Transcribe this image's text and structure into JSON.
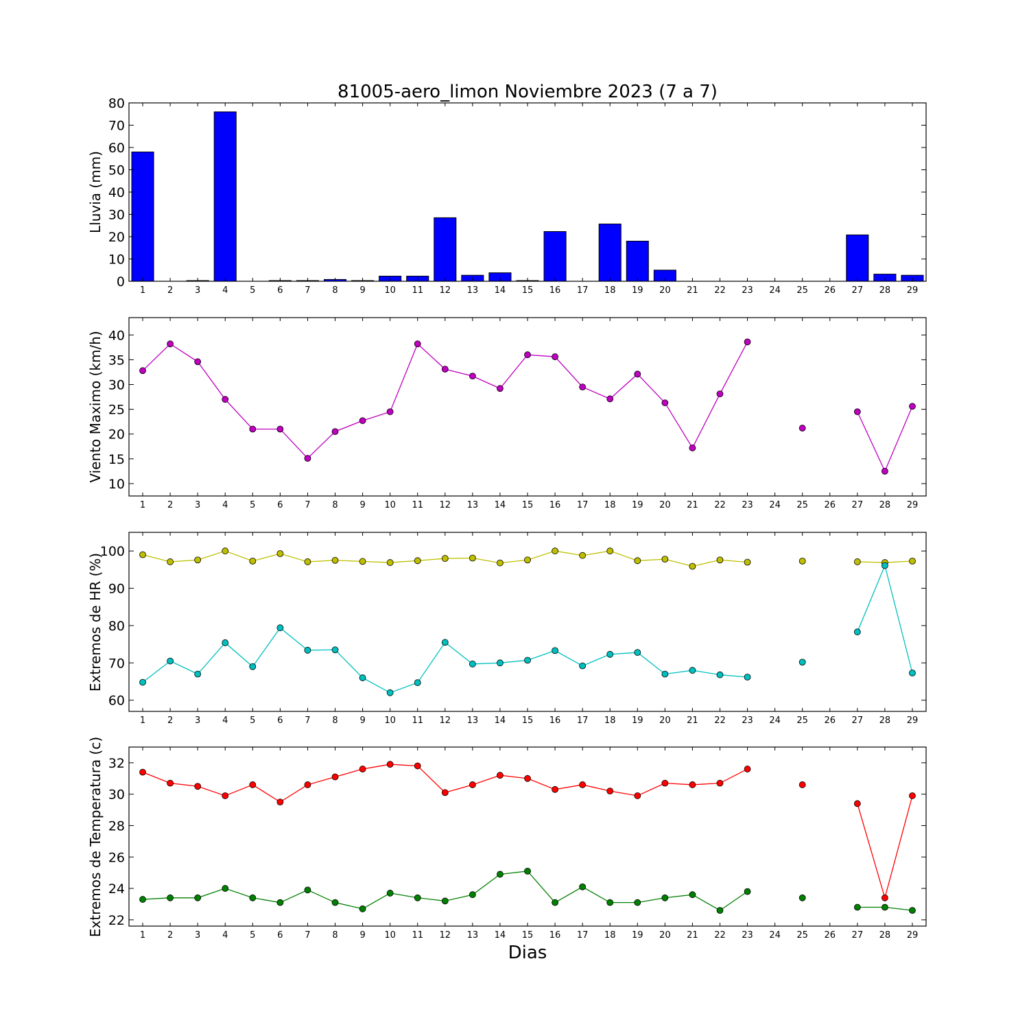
{
  "chart_data": [
    {
      "type": "bar",
      "title": "81005-aero_limon Noviembre 2023  (7 a 7)",
      "ylabel": "Lluvia (mm)",
      "ylim": [
        0,
        80
      ],
      "yticks": [
        0,
        10,
        20,
        30,
        40,
        50,
        60,
        70,
        80
      ],
      "categories": [
        "1",
        "2",
        "3",
        "4",
        "5",
        "6",
        "7",
        "8",
        "9",
        "10",
        "11",
        "12",
        "13",
        "14",
        "15",
        "16",
        "17",
        "18",
        "19",
        "20",
        "21",
        "22",
        "23",
        "24",
        "25",
        "26",
        "27",
        "28",
        "29"
      ],
      "values": [
        58,
        0,
        0.3,
        76,
        0,
        0.3,
        0.3,
        0.8,
        0.3,
        2.3,
        2.3,
        28.5,
        2.7,
        3.8,
        0.3,
        22.3,
        0,
        25.7,
        18,
        5,
        0,
        0,
        0,
        0,
        0,
        0,
        20.8,
        3.2,
        2.7
      ],
      "color": "#0000ff"
    },
    {
      "type": "line",
      "ylabel": "Viento Maximo (km/h)",
      "ylim": [
        7.5,
        43.5
      ],
      "yticks": [
        10,
        15,
        20,
        25,
        30,
        35,
        40
      ],
      "series": [
        {
          "color": "#bf00bf",
          "values": [
            32.8,
            38.2,
            34.6,
            27,
            21,
            21,
            15.1,
            20.5,
            22.7,
            24.5,
            38.2,
            33.1,
            31.7,
            29.2,
            36,
            35.6,
            29.5,
            27.1,
            32.1,
            26.3,
            17.2,
            28.1,
            38.6,
            null,
            21.2,
            null,
            24.5,
            12.5,
            25.6
          ]
        }
      ]
    },
    {
      "type": "line",
      "ylabel": "Extremos de HR (%)",
      "ylim": [
        57,
        105
      ],
      "yticks": [
        60,
        70,
        80,
        90,
        100
      ],
      "series": [
        {
          "color": "#bfbf00",
          "values": [
            99,
            97.1,
            97.6,
            100,
            97.3,
            99.3,
            97.1,
            97.5,
            97.2,
            96.9,
            97.4,
            98,
            98.1,
            96.8,
            97.6,
            100,
            98.8,
            100,
            97.4,
            97.8,
            95.9,
            97.6,
            97,
            null,
            97.3,
            null,
            97.1,
            96.9,
            97.3
          ]
        },
        {
          "color": "#00bfbf",
          "values": [
            64.8,
            70.5,
            67,
            75.4,
            69,
            79.4,
            73.4,
            73.5,
            66,
            62,
            64.7,
            75.5,
            69.7,
            70,
            70.7,
            73.3,
            69.2,
            72.3,
            72.8,
            67,
            68,
            66.8,
            66.2,
            null,
            70.2,
            null,
            78.3,
            96.1,
            67.3
          ]
        }
      ]
    },
    {
      "type": "line",
      "ylabel": "Extremos de Temperatura (c)",
      "xlabel": "Dias",
      "ylim": [
        21.6,
        33
      ],
      "yticks": [
        22,
        24,
        26,
        28,
        30,
        32
      ],
      "series": [
        {
          "color": "#ff0000",
          "values": [
            31.4,
            30.7,
            30.5,
            29.9,
            30.6,
            29.5,
            30.6,
            31.1,
            31.6,
            31.9,
            31.8,
            30.1,
            30.6,
            31.2,
            31,
            30.3,
            30.6,
            30.2,
            29.9,
            30.7,
            30.6,
            30.7,
            31.6,
            null,
            30.6,
            null,
            29.4,
            23.4,
            29.9
          ]
        },
        {
          "color": "#008000",
          "values": [
            23.3,
            23.4,
            23.4,
            24,
            23.4,
            23.1,
            23.9,
            23.1,
            22.7,
            23.7,
            23.4,
            23.2,
            23.6,
            24.9,
            25.1,
            23.1,
            24.1,
            23.1,
            23.1,
            23.4,
            23.6,
            22.6,
            23.8,
            null,
            23.4,
            null,
            22.8,
            22.8,
            22.6
          ]
        }
      ]
    }
  ]
}
